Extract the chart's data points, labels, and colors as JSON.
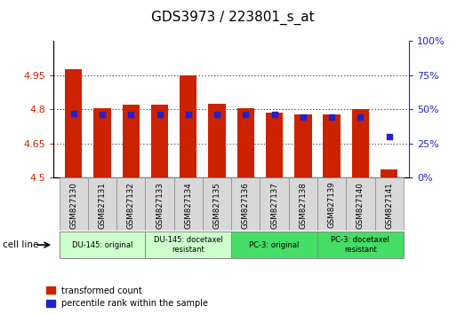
{
  "title": "GDS3973 / 223801_s_at",
  "samples": [
    "GSM827130",
    "GSM827131",
    "GSM827132",
    "GSM827133",
    "GSM827134",
    "GSM827135",
    "GSM827136",
    "GSM827137",
    "GSM827138",
    "GSM827139",
    "GSM827140",
    "GSM827141"
  ],
  "red_values": [
    4.975,
    4.805,
    4.82,
    4.82,
    4.95,
    4.825,
    4.805,
    4.785,
    4.775,
    4.775,
    4.8,
    4.535
  ],
  "blue_values": [
    47,
    46,
    46,
    46,
    46,
    46,
    46,
    46,
    44,
    44,
    44,
    30
  ],
  "ymin": 4.5,
  "ymax": 5.1,
  "y2min": 0,
  "y2max": 100,
  "yticks": [
    4.5,
    4.65,
    4.8,
    4.95
  ],
  "ytick_labels": [
    "4.5",
    "4.65",
    "4.8",
    "4.95"
  ],
  "y2ticks": [
    0,
    25,
    50,
    75,
    100
  ],
  "y2tick_labels": [
    "0%",
    "25%",
    "50%",
    "75%",
    "100%"
  ],
  "groups": [
    {
      "label": "DU-145: original",
      "start": 0,
      "end": 3,
      "color": "#ccffcc"
    },
    {
      "label": "DU-145: docetaxel\nresistant",
      "start": 3,
      "end": 6,
      "color": "#ccffcc"
    },
    {
      "label": "PC-3: original",
      "start": 6,
      "end": 9,
      "color": "#44dd66"
    },
    {
      "label": "PC-3: docetaxel\nresistant",
      "start": 9,
      "end": 12,
      "color": "#44dd66"
    }
  ],
  "bar_color": "#cc2200",
  "blue_color": "#2222cc",
  "bar_bottom": 4.5,
  "bar_width": 0.6,
  "grid_color": "#000000",
  "tick_color_left": "#cc2200",
  "tick_color_right": "#2222cc",
  "title_fontsize": 11,
  "axis_fontsize": 8,
  "legend_red": "transformed count",
  "legend_blue": "percentile rank within the sample"
}
